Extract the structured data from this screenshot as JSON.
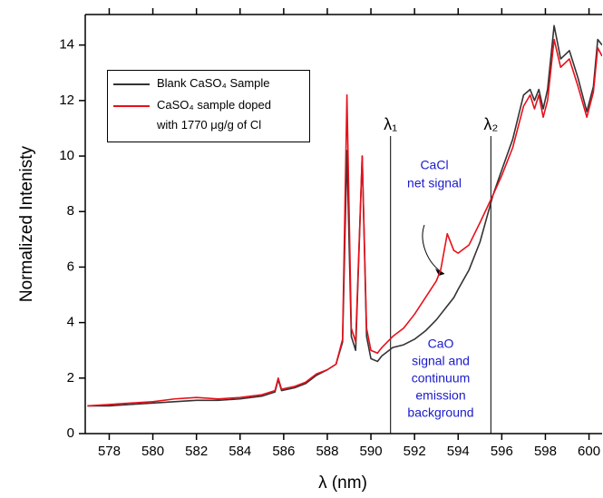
{
  "chart_data": {
    "type": "line",
    "xlabel": "λ (nm)",
    "ylabel": "Normalized Intenisty",
    "x": [
      577,
      578,
      579,
      580,
      581,
      582,
      583,
      584,
      585,
      585.6,
      585.75,
      585.9,
      586.5,
      587,
      587.5,
      588,
      588.4,
      588.7,
      588.9,
      589.1,
      589.3,
      589.6,
      589.8,
      590,
      590.3,
      590.5,
      591,
      591.5,
      592,
      592.5,
      593,
      593.2,
      593.5,
      593.8,
      594,
      594.5,
      595,
      595.6,
      596,
      596.5,
      597,
      597.3,
      597.5,
      597.7,
      597.9,
      598.1,
      598.4,
      598.7,
      599.1,
      599.5,
      599.9,
      600.2,
      600.4,
      600.6
    ],
    "series": [
      {
        "name": "Blank CaSO₄ Sample",
        "color": "#333333",
        "values": [
          1.0,
          1.0,
          1.05,
          1.1,
          1.15,
          1.2,
          1.2,
          1.25,
          1.35,
          1.5,
          1.95,
          1.55,
          1.65,
          1.8,
          2.1,
          2.3,
          2.5,
          3.3,
          10.2,
          3.5,
          3.0,
          10.0,
          3.5,
          2.7,
          2.6,
          2.8,
          3.1,
          3.2,
          3.4,
          3.7,
          4.1,
          4.3,
          4.6,
          4.9,
          5.2,
          5.9,
          6.9,
          8.6,
          9.5,
          10.6,
          12.2,
          12.4,
          12.0,
          12.4,
          11.7,
          12.4,
          14.7,
          13.5,
          13.8,
          12.8,
          11.6,
          12.5,
          14.2,
          14.0
        ]
      },
      {
        "name": "CaSO₄ sample doped with 1770 μg/g of Cl",
        "color": "#e8101a",
        "values": [
          1.0,
          1.05,
          1.1,
          1.15,
          1.25,
          1.3,
          1.25,
          1.3,
          1.4,
          1.55,
          2.0,
          1.6,
          1.7,
          1.85,
          2.15,
          2.3,
          2.5,
          3.4,
          12.2,
          3.8,
          3.3,
          10.0,
          3.8,
          3.0,
          2.9,
          3.1,
          3.5,
          3.8,
          4.3,
          4.9,
          5.5,
          5.9,
          7.2,
          6.6,
          6.5,
          6.8,
          7.6,
          8.6,
          9.3,
          10.3,
          11.8,
          12.2,
          11.7,
          12.2,
          11.4,
          12.0,
          14.2,
          13.2,
          13.5,
          12.5,
          11.4,
          12.3,
          13.9,
          13.6
        ]
      }
    ],
    "xlim": [
      576.9,
      600.6
    ],
    "ylim": [
      0,
      15.1
    ],
    "xticks": [
      578,
      580,
      582,
      584,
      586,
      588,
      590,
      592,
      594,
      596,
      598,
      600
    ],
    "yticks": [
      0,
      2,
      4,
      6,
      8,
      10,
      12,
      14
    ],
    "vlines": [
      {
        "x": 590.9,
        "label": "λ₁"
      },
      {
        "x": 595.5,
        "label": "λ₂"
      }
    ],
    "annotations": [
      {
        "lines": [
          "CaCl",
          "net signal"
        ],
        "color": "#1a1acc"
      },
      {
        "lines": [
          "CaO",
          "signal and",
          "continuum",
          "emission",
          "background"
        ],
        "color": "#1a1acc"
      }
    ]
  }
}
